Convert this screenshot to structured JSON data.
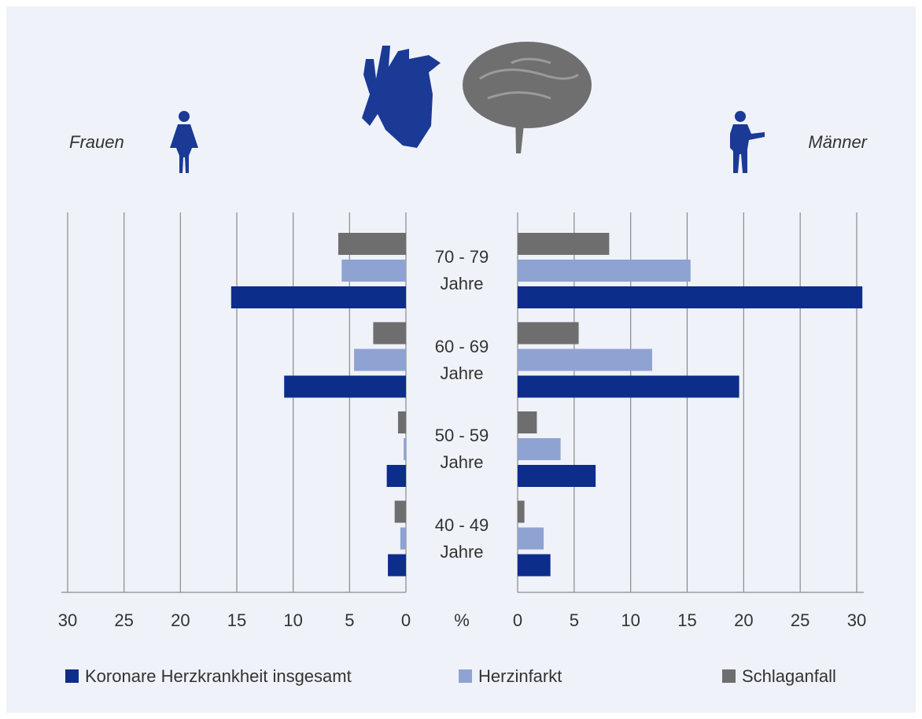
{
  "chart_data": {
    "type": "butterfly_bar",
    "left_label": "Frauen",
    "right_label": "Männer",
    "center_label": "%",
    "categories": [
      "70 - 79 Jahre",
      "60 - 69 Jahre",
      "50 - 59 Jahre",
      "40 - 49 Jahre"
    ],
    "series": [
      {
        "name": "Koronare Herzkrankheit insgesamt",
        "color": "#0d2d8a",
        "left": [
          15.5,
          10.8,
          1.7,
          1.6
        ],
        "right": [
          30.5,
          19.6,
          6.9,
          2.9
        ]
      },
      {
        "name": "Herzinfarkt",
        "color": "#8fa3d2",
        "left": [
          5.7,
          4.6,
          0.2,
          0.5
        ],
        "right": [
          15.3,
          11.9,
          3.8,
          2.3
        ]
      },
      {
        "name": "Schlaganfall",
        "color": "#6e6e6e",
        "left": [
          6.0,
          2.9,
          0.7,
          1.0
        ],
        "right": [
          8.1,
          5.4,
          1.7,
          0.6
        ]
      }
    ],
    "xlim": [
      0,
      30
    ],
    "xticks": [
      0,
      5,
      10,
      15,
      20,
      25,
      30
    ],
    "grid": true,
    "legend": "bottom"
  }
}
